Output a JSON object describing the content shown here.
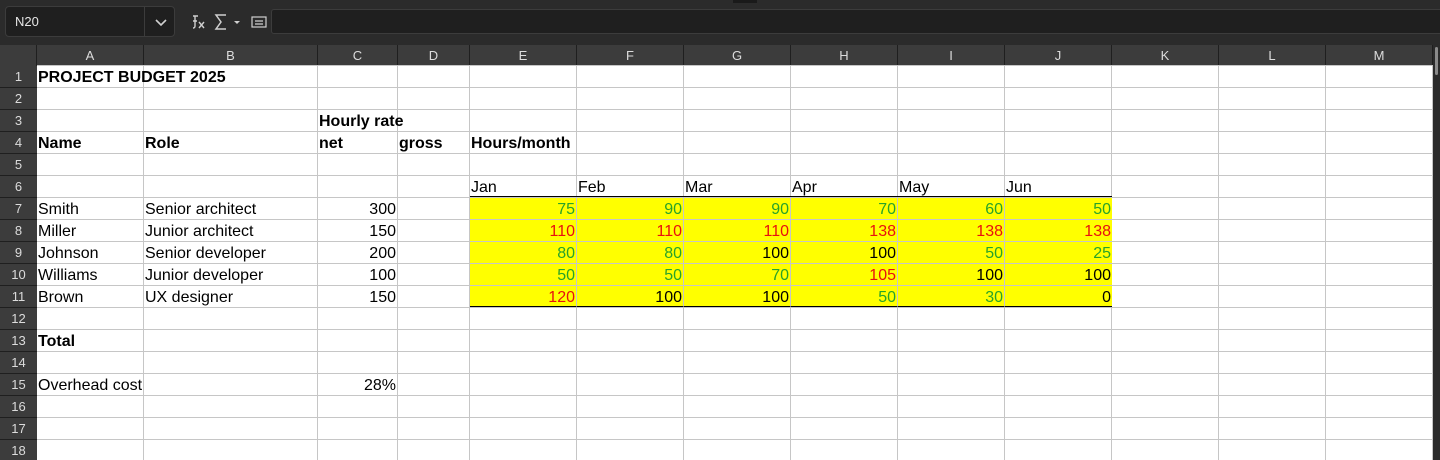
{
  "formula_bar": {
    "name_box": "N20",
    "icons": [
      "function-wizard-icon",
      "sum-icon",
      "chevron-down-icon",
      "formula-icon"
    ]
  },
  "columns": [
    "A",
    "B",
    "C",
    "D",
    "E",
    "F",
    "G",
    "H",
    "I",
    "J",
    "K",
    "L",
    "M"
  ],
  "rows": [
    "1",
    "2",
    "3",
    "4",
    "5",
    "6",
    "7",
    "8",
    "9",
    "10",
    "11",
    "12",
    "13",
    "14",
    "15",
    "16",
    "17",
    "18"
  ],
  "sheet": {
    "title": "PROJECT BUDGET 2025",
    "hourly_rate": "Hourly rate",
    "name_header": "Name",
    "role_header": "Role",
    "net_header": "net",
    "gross_header": "gross",
    "hours_header": "Hours/month",
    "months": [
      "Jan",
      "Feb",
      "Mar",
      "Apr",
      "May",
      "Jun"
    ],
    "people": [
      {
        "name": "Smith",
        "role": "Senior architect",
        "rate": "300",
        "hours": [
          "75",
          "90",
          "90",
          "70",
          "60",
          "50"
        ],
        "colors": [
          "green",
          "green",
          "green",
          "green",
          "green",
          "green"
        ]
      },
      {
        "name": "Miller",
        "role": "Junior architect",
        "rate": "150",
        "hours": [
          "110",
          "110",
          "110",
          "138",
          "138",
          "138"
        ],
        "colors": [
          "red",
          "red",
          "red",
          "red",
          "red",
          "red"
        ]
      },
      {
        "name": "Johnson",
        "role": "Senior developer",
        "rate": "200",
        "hours": [
          "80",
          "80",
          "100",
          "100",
          "50",
          "25"
        ],
        "colors": [
          "green",
          "green",
          "black",
          "black",
          "green",
          "green"
        ]
      },
      {
        "name": "Williams",
        "role": "Junior developer",
        "rate": "100",
        "hours": [
          "50",
          "50",
          "70",
          "105",
          "100",
          "100"
        ],
        "colors": [
          "green",
          "green",
          "green",
          "red",
          "black",
          "black"
        ]
      },
      {
        "name": "Brown",
        "role": "UX designer",
        "rate": "150",
        "hours": [
          "120",
          "100",
          "100",
          "50",
          "30",
          "0"
        ],
        "colors": [
          "red",
          "black",
          "black",
          "green",
          "green",
          "black"
        ]
      }
    ],
    "total_label": "Total",
    "overhead_label": "Overhead cost",
    "overhead_value": "28%"
  },
  "colors": {
    "highlight": "#ffff00",
    "green": "#29a329",
    "red": "#e8100f"
  }
}
